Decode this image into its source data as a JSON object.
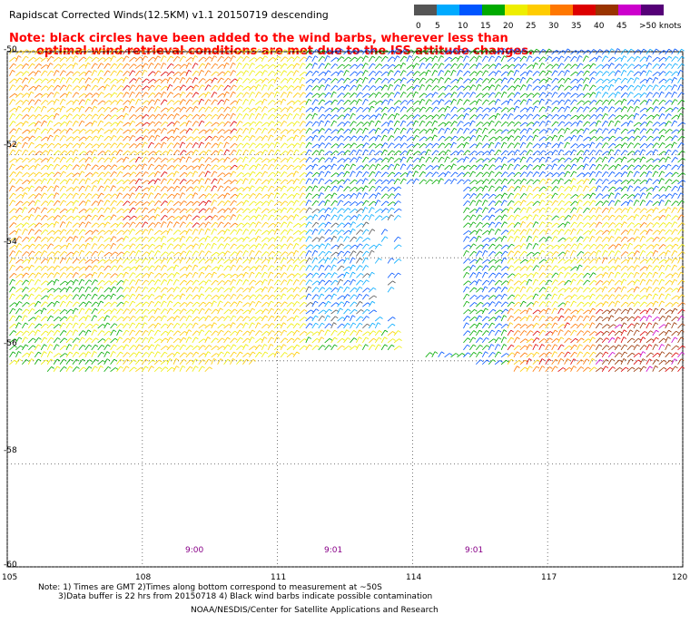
{
  "title": "Rapidscat Corrected Winds(12.5KM) v1.1 20150719 descending",
  "note": {
    "line1": "Note: black circles have been added to the wind barbs, wherever less than",
    "line2": "optimal wind retrieval conditions are met due to the ISS attitude changes."
  },
  "legend": {
    "labels": [
      "0",
      "5",
      "10",
      "15",
      "20",
      "25",
      "30",
      "35",
      "40",
      "45",
      ">50 knots"
    ],
    "colors": [
      "#555555",
      "#00aaff",
      "#0055ff",
      "#00aa00",
      "#eeee00",
      "#ffcc00",
      "#ff7700",
      "#dd0000",
      "#993300",
      "#cc00cc",
      "#550077"
    ]
  },
  "axes": {
    "lat_labels": [
      "-50",
      "-52",
      "-54",
      "-56",
      "-58",
      "-60"
    ],
    "lon_labels": [
      "105",
      "108",
      "111",
      "114",
      "117",
      "120"
    ],
    "lat_range": [
      -60,
      -50
    ],
    "lon_range": [
      105,
      120
    ],
    "grid": "dotted"
  },
  "time_labels": [
    "9:00",
    "9:01",
    "9:01"
  ],
  "footnote": {
    "line1": "Note: 1) Times are GMT 2)Times along bottom correspond to measurement at ~50S",
    "line2": "3)Data buffer is 22 hrs from 20150718 4) Black wind barbs indicate possible contamination"
  },
  "credit": "NOAA/NESDIS/Center for Satellite Applications and Research"
}
